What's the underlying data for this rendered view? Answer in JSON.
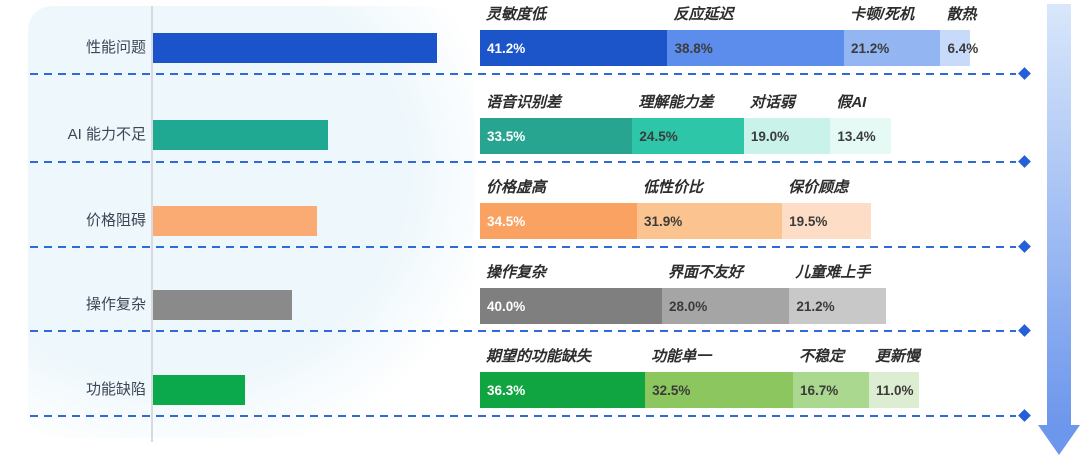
{
  "chart_data": {
    "type": "bar",
    "variant": "horizontal category bars (left) + proportional stacked breakdown bars (right)",
    "unit": "%",
    "legend_position": "labels above segments",
    "grid": "dashed horizontal separators between rows, each ending in a diamond arrow",
    "rows": [
      {
        "category": "性能问题",
        "category_color": "#1a53ca",
        "category_bar_len": 284,
        "segments": [
          {
            "label": "灵敏度低",
            "value": 41.2,
            "display": "41.2%",
            "color": "#1b55c9"
          },
          {
            "label": "反应延迟",
            "value": 38.8,
            "display": "38.8%",
            "color": "#5c8cec"
          },
          {
            "label": "卡顿/死机",
            "value": 21.2,
            "display": "21.2%",
            "color": "#93b6f3"
          },
          {
            "label": "散热",
            "value": 6.4,
            "display": "6.4%",
            "color": "#c7daf9"
          }
        ]
      },
      {
        "category": "AI 能力不足",
        "category_color": "#1fa892",
        "category_bar_len": 175,
        "segments": [
          {
            "label": "语音识别差",
            "value": 33.5,
            "display": "33.5%",
            "color": "#27a590"
          },
          {
            "label": "理解能力差",
            "value": 24.5,
            "display": "24.5%",
            "color": "#2ec6a8"
          },
          {
            "label": "对话弱",
            "value": 19.0,
            "display": "19.0%",
            "color": "#c9f2ea"
          },
          {
            "label": "假AI",
            "value": 13.4,
            "display": "13.4%",
            "color": "#e5faf5"
          }
        ]
      },
      {
        "category": "价格阻碍",
        "category_color": "#faaa73",
        "category_bar_len": 164,
        "segments": [
          {
            "label": "价格虚高",
            "value": 34.5,
            "display": "34.5%",
            "color": "#f9a262"
          },
          {
            "label": "低性价比",
            "value": 31.9,
            "display": "31.9%",
            "color": "#fbc390"
          },
          {
            "label": "保价顾虑",
            "value": 19.5,
            "display": "19.5%",
            "color": "#fdddc5"
          }
        ]
      },
      {
        "category": "操作复杂",
        "category_color": "#8a8a8a",
        "category_bar_len": 139,
        "segments": [
          {
            "label": "操作复杂",
            "value": 40.0,
            "display": "40.0%",
            "color": "#7f7f7f"
          },
          {
            "label": "界面不友好",
            "value": 28.0,
            "display": "28.0%",
            "color": "#a5a5a5"
          },
          {
            "label": "儿童难上手",
            "value": 21.2,
            "display": "21.2%",
            "color": "#c8c8c8"
          }
        ]
      },
      {
        "category": "功能缺陷",
        "category_color": "#0ba84c",
        "category_bar_len": 92,
        "segments": [
          {
            "label": "期望的功能缺失",
            "value": 36.3,
            "display": "36.3%",
            "color": "#11a542"
          },
          {
            "label": "功能单一",
            "value": 32.5,
            "display": "32.5%",
            "color": "#8cc65e"
          },
          {
            "label": "不稳定",
            "value": 16.7,
            "display": "16.7%",
            "color": "#aad88e"
          },
          {
            "label": "更新慢",
            "value": 11.0,
            "display": "11.0%",
            "color": "#ddedd2"
          }
        ]
      }
    ]
  },
  "decorations": {
    "dash_color": "#2e6ad8",
    "diamond_color": "#2560d8",
    "axis_color": "#d7dbe0",
    "panel_color": "#eef7fc",
    "arrow_gradient_top": "#d9e7fb",
    "arrow_gradient_bottom": "#6d97ec",
    "segment_value_color_first": "#ffffff",
    "segment_value_color_rest": "#3b3b3b"
  }
}
